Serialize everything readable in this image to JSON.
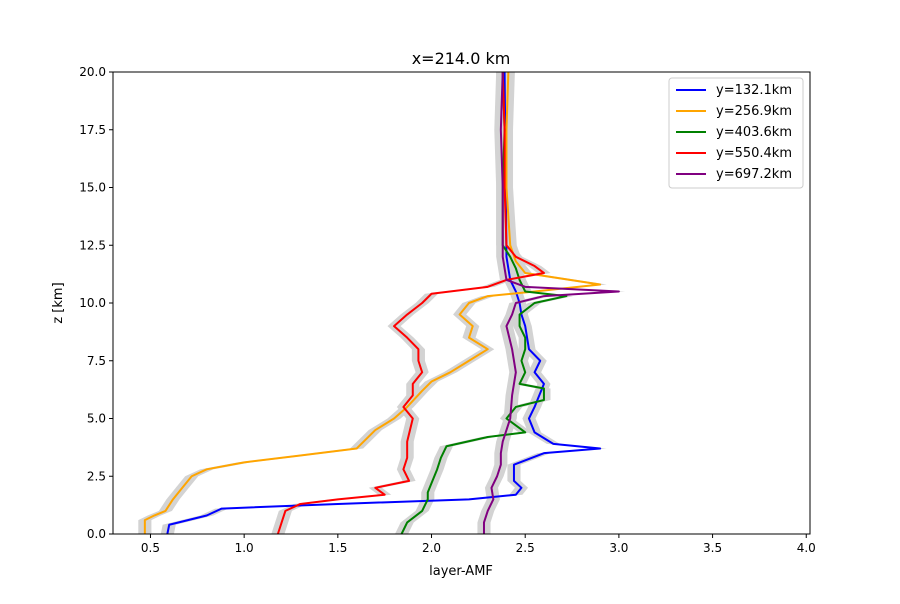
{
  "chart_data": {
    "type": "line",
    "title": "x=214.0 km",
    "xlabel": "layer-AMF",
    "ylabel": "z [km]",
    "xlim": [
      0.3,
      4.02
    ],
    "ylim": [
      0,
      20
    ],
    "xticks": [
      "0.5",
      "1.0",
      "1.5",
      "2.0",
      "2.5",
      "3.0",
      "3.5",
      "4.0"
    ],
    "yticks": [
      "0.0",
      "2.5",
      "5.0",
      "7.5",
      "10.0",
      "12.5",
      "15.0",
      "17.5",
      "20.0"
    ],
    "grid": false,
    "legend_position": "top-right",
    "series": [
      {
        "name": "y=132.1km",
        "color": "#0000ff",
        "points": [
          [
            0.59,
            0
          ],
          [
            0.6,
            0.4
          ],
          [
            0.7,
            0.6
          ],
          [
            0.8,
            0.8
          ],
          [
            0.88,
            1.1
          ],
          [
            1.5,
            1.3
          ],
          [
            2.2,
            1.5
          ],
          [
            2.45,
            1.7
          ],
          [
            2.48,
            2.0
          ],
          [
            2.44,
            2.3
          ],
          [
            2.44,
            3.0
          ],
          [
            2.6,
            3.5
          ],
          [
            2.9,
            3.7
          ],
          [
            2.65,
            3.9
          ],
          [
            2.55,
            4.4
          ],
          [
            2.52,
            5.0
          ],
          [
            2.55,
            5.5
          ],
          [
            2.6,
            6.5
          ],
          [
            2.55,
            7.0
          ],
          [
            2.58,
            7.5
          ],
          [
            2.52,
            8.0
          ],
          [
            2.5,
            9.0
          ],
          [
            2.48,
            9.5
          ],
          [
            2.47,
            10.0
          ],
          [
            2.45,
            10.5
          ],
          [
            2.42,
            11.0
          ],
          [
            2.4,
            12.0
          ],
          [
            2.39,
            20.0
          ]
        ]
      },
      {
        "name": "y=256.9km",
        "color": "#ffa500",
        "points": [
          [
            0.47,
            0
          ],
          [
            0.47,
            0.6
          ],
          [
            0.52,
            0.8
          ],
          [
            0.58,
            1.0
          ],
          [
            0.62,
            1.5
          ],
          [
            0.67,
            2.0
          ],
          [
            0.72,
            2.5
          ],
          [
            0.8,
            2.8
          ],
          [
            1.0,
            3.1
          ],
          [
            1.3,
            3.4
          ],
          [
            1.6,
            3.7
          ],
          [
            1.7,
            4.5
          ],
          [
            1.8,
            5.0
          ],
          [
            1.87,
            5.5
          ],
          [
            1.95,
            6.2
          ],
          [
            2.0,
            6.6
          ],
          [
            2.1,
            7.0
          ],
          [
            2.2,
            7.5
          ],
          [
            2.3,
            8.0
          ],
          [
            2.2,
            8.5
          ],
          [
            2.22,
            9.0
          ],
          [
            2.15,
            9.5
          ],
          [
            2.2,
            10.0
          ],
          [
            2.3,
            10.3
          ],
          [
            2.55,
            10.5
          ],
          [
            2.9,
            10.8
          ],
          [
            2.5,
            11.3
          ],
          [
            2.45,
            11.8
          ],
          [
            2.42,
            12.5
          ],
          [
            2.4,
            15.0
          ],
          [
            2.4,
            17.5
          ],
          [
            2.41,
            20.0
          ]
        ]
      },
      {
        "name": "y=403.6km",
        "color": "#008000",
        "points": [
          [
            1.84,
            0
          ],
          [
            1.87,
            0.5
          ],
          [
            1.95,
            1.0
          ],
          [
            1.98,
            1.5
          ],
          [
            1.98,
            1.8
          ],
          [
            2.0,
            2.2
          ],
          [
            2.03,
            2.8
          ],
          [
            2.05,
            3.3
          ],
          [
            2.08,
            3.8
          ],
          [
            2.3,
            4.2
          ],
          [
            2.5,
            4.4
          ],
          [
            2.4,
            5.0
          ],
          [
            2.45,
            5.5
          ],
          [
            2.6,
            5.8
          ],
          [
            2.6,
            6.3
          ],
          [
            2.47,
            6.5
          ],
          [
            2.5,
            7.0
          ],
          [
            2.48,
            7.5
          ],
          [
            2.5,
            8.0
          ],
          [
            2.5,
            8.5
          ],
          [
            2.47,
            9.0
          ],
          [
            2.47,
            9.5
          ],
          [
            2.55,
            10.0
          ],
          [
            2.72,
            10.3
          ],
          [
            2.5,
            10.5
          ],
          [
            2.47,
            11.0
          ],
          [
            2.45,
            11.5
          ],
          [
            2.42,
            12.0
          ],
          [
            2.38,
            12.5
          ],
          [
            2.38,
            15.0
          ],
          [
            2.39,
            17.5
          ],
          [
            2.38,
            20.0
          ]
        ]
      },
      {
        "name": "y=550.4km",
        "color": "#ff0000",
        "points": [
          [
            1.18,
            0
          ],
          [
            1.2,
            0.5
          ],
          [
            1.22,
            1.0
          ],
          [
            1.3,
            1.3
          ],
          [
            1.5,
            1.5
          ],
          [
            1.75,
            1.7
          ],
          [
            1.7,
            2.0
          ],
          [
            1.88,
            2.3
          ],
          [
            1.85,
            2.8
          ],
          [
            1.87,
            3.3
          ],
          [
            1.87,
            4.0
          ],
          [
            1.9,
            5.0
          ],
          [
            1.85,
            5.5
          ],
          [
            1.9,
            6.0
          ],
          [
            1.9,
            6.5
          ],
          [
            1.95,
            7.0
          ],
          [
            1.93,
            7.5
          ],
          [
            1.93,
            8.0
          ],
          [
            1.87,
            8.5
          ],
          [
            1.8,
            9.0
          ],
          [
            1.87,
            9.5
          ],
          [
            1.95,
            10.0
          ],
          [
            2.0,
            10.4
          ],
          [
            2.3,
            10.7
          ],
          [
            2.4,
            11.0
          ],
          [
            2.6,
            11.3
          ],
          [
            2.55,
            11.6
          ],
          [
            2.45,
            12.0
          ],
          [
            2.4,
            12.5
          ],
          [
            2.39,
            15.0
          ],
          [
            2.39,
            17.5
          ],
          [
            2.38,
            20.0
          ]
        ]
      },
      {
        "name": "y=697.2km",
        "color": "#800080",
        "points": [
          [
            2.28,
            0
          ],
          [
            2.28,
            0.5
          ],
          [
            2.3,
            1.0
          ],
          [
            2.33,
            1.5
          ],
          [
            2.32,
            2.0
          ],
          [
            2.35,
            2.5
          ],
          [
            2.37,
            3.0
          ],
          [
            2.37,
            3.5
          ],
          [
            2.38,
            4.0
          ],
          [
            2.4,
            4.5
          ],
          [
            2.42,
            5.0
          ],
          [
            2.43,
            6.0
          ],
          [
            2.45,
            7.0
          ],
          [
            2.43,
            8.0
          ],
          [
            2.4,
            9.0
          ],
          [
            2.43,
            9.5
          ],
          [
            2.45,
            10.0
          ],
          [
            2.6,
            10.3
          ],
          [
            3.0,
            10.5
          ],
          [
            2.5,
            10.7
          ],
          [
            2.4,
            11.0
          ],
          [
            2.38,
            12.0
          ],
          [
            2.38,
            15.0
          ],
          [
            2.37,
            17.5
          ],
          [
            2.38,
            20.0
          ]
        ]
      }
    ],
    "uncertainty_fill_color": "#d3d3d3"
  }
}
